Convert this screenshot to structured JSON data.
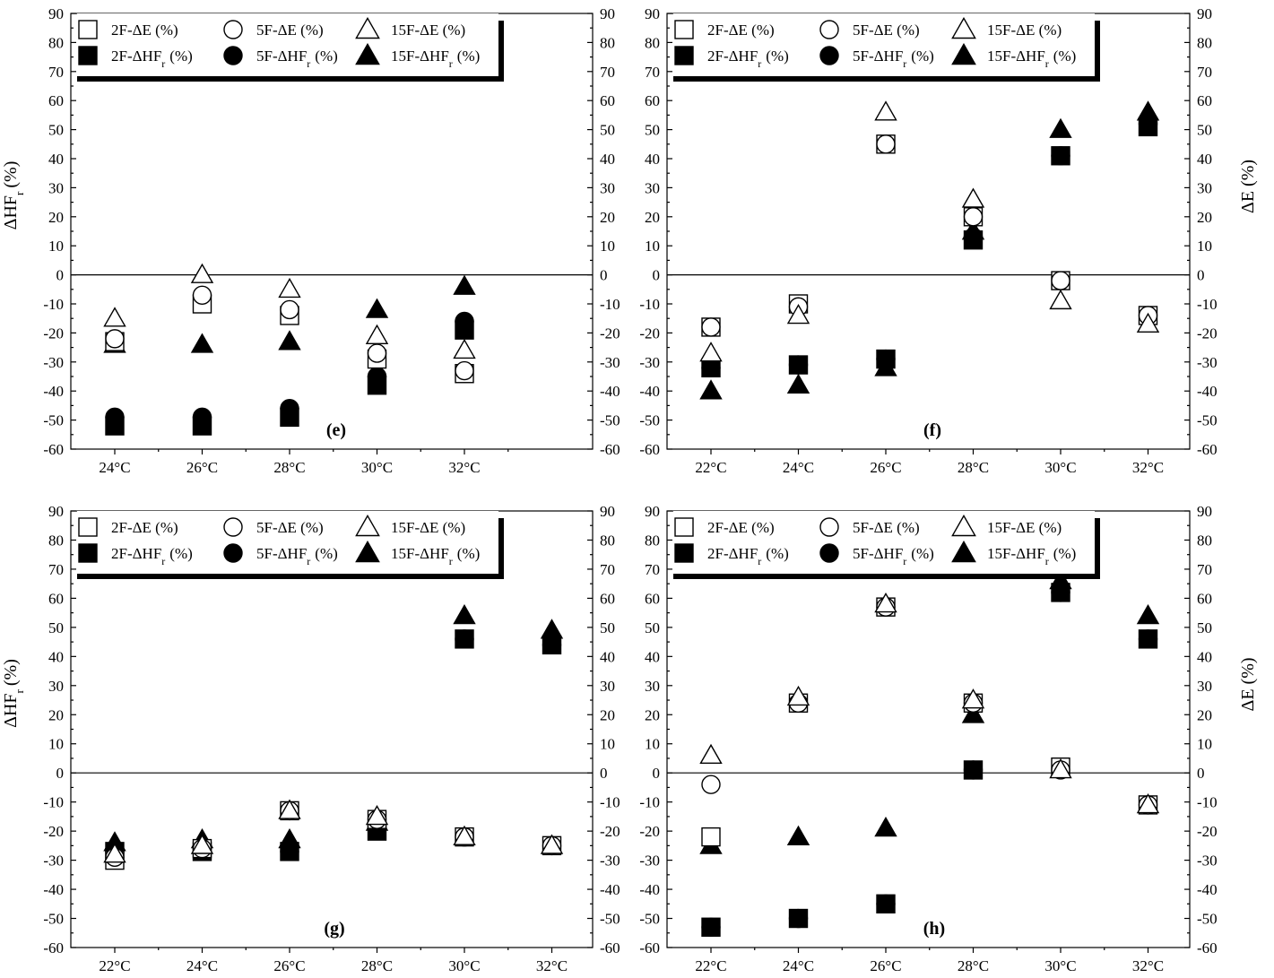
{
  "chart_data": [
    {
      "type": "scatter",
      "panel_label": "(e)",
      "categories": [
        "24°C",
        "26°C",
        "28°C",
        "30°C",
        "32°C"
      ],
      "ylim": [
        -60,
        90
      ],
      "yticks": [
        "90",
        "80",
        "70",
        "60",
        "50",
        "40",
        "30",
        "20",
        "10",
        "0",
        "-10",
        "-20",
        "-30",
        "-40",
        "-50",
        "-60"
      ],
      "ylabel": "ΔHF",
      "ylabel_sub": "r",
      "ylabel_unit": "(%)",
      "y2label": "",
      "legend": [
        {
          "name": "2F-ΔE (%)",
          "marker": "square",
          "filled": false
        },
        {
          "name": "5F-ΔE (%)",
          "marker": "circle",
          "filled": false
        },
        {
          "name": "15F-ΔE (%)",
          "marker": "triangle",
          "filled": false
        },
        {
          "name": "2F-ΔHF",
          "sub": "r",
          "unit": "(%)",
          "marker": "square",
          "filled": true
        },
        {
          "name": "5F-ΔHF",
          "sub": "r",
          "unit": "(%)",
          "marker": "circle",
          "filled": true
        },
        {
          "name": "15F-ΔHF",
          "sub": "r",
          "unit": "(%)",
          "marker": "triangle",
          "filled": true
        }
      ],
      "series": [
        {
          "name": "2F-ΔE (%)",
          "values": [
            -23,
            -10,
            -14,
            -29,
            -34
          ]
        },
        {
          "name": "5F-ΔE (%)",
          "values": [
            -22,
            -7,
            -12,
            -27,
            -33
          ]
        },
        {
          "name": "15F-ΔE (%)",
          "values": [
            -15,
            0,
            -5,
            -21,
            -26
          ]
        },
        {
          "name": "2F-ΔHFr (%)",
          "values": [
            -52,
            -52,
            -49,
            -38,
            -19
          ]
        },
        {
          "name": "5F-ΔHFr (%)",
          "values": [
            -49,
            -49,
            -46,
            -35,
            -16
          ]
        },
        {
          "name": "15F-ΔHFr (%)",
          "values": [
            -24,
            -24,
            -23,
            -12,
            -4
          ]
        }
      ]
    },
    {
      "type": "scatter",
      "panel_label": "(f)",
      "categories": [
        "22°C",
        "24°C",
        "26°C",
        "28°C",
        "30°C",
        "32°C"
      ],
      "ylim": [
        -60,
        90
      ],
      "yticks": [
        "90",
        "80",
        "70",
        "60",
        "50",
        "40",
        "30",
        "20",
        "10",
        "0",
        "-10",
        "-20",
        "-30",
        "-40",
        "-50",
        "-60"
      ],
      "ylabel": "",
      "y2label": "ΔE (%)",
      "legend": [
        {
          "name": "2F-ΔE (%)",
          "marker": "square",
          "filled": false
        },
        {
          "name": "5F-ΔE (%)",
          "marker": "circle",
          "filled": false
        },
        {
          "name": "15F-ΔE (%)",
          "marker": "triangle",
          "filled": false
        },
        {
          "name": "2F-ΔHF",
          "sub": "r",
          "unit": "(%)",
          "marker": "square",
          "filled": true
        },
        {
          "name": "5F-ΔHF",
          "sub": "r",
          "unit": "(%)",
          "marker": "circle",
          "filled": true
        },
        {
          "name": "15F-ΔHF",
          "sub": "r",
          "unit": "(%)",
          "marker": "triangle",
          "filled": true
        }
      ],
      "series": [
        {
          "name": "2F-ΔE (%)",
          "values": [
            -18,
            -10,
            45,
            20,
            -2,
            -14
          ]
        },
        {
          "name": "5F-ΔE (%)",
          "values": [
            -18,
            -11,
            45,
            20,
            -2,
            -14
          ]
        },
        {
          "name": "15F-ΔE (%)",
          "values": [
            -27,
            -14,
            56,
            26,
            -9,
            -17
          ]
        },
        {
          "name": "2F-ΔHFr (%)",
          "values": [
            -32,
            -31,
            -29,
            12,
            41,
            51
          ]
        },
        {
          "name": "5F-ΔHFr (%)",
          "values": [
            -32,
            -31,
            -29,
            13,
            41,
            52
          ]
        },
        {
          "name": "15F-ΔHFr (%)",
          "values": [
            -40,
            -38,
            -32,
            15,
            50,
            56
          ]
        }
      ]
    },
    {
      "type": "scatter",
      "panel_label": "(g)",
      "categories": [
        "22°C",
        "24°C",
        "26°C",
        "28°C",
        "30°C",
        "32°C"
      ],
      "ylim": [
        -60,
        90
      ],
      "yticks": [
        "90",
        "80",
        "70",
        "60",
        "50",
        "40",
        "30",
        "20",
        "10",
        "0",
        "-10",
        "-20",
        "-30",
        "-40",
        "-50",
        "-60"
      ],
      "ylabel": "ΔHF",
      "ylabel_sub": "r",
      "ylabel_unit": "(%)",
      "y2label": "",
      "legend": [
        {
          "name": "2F-ΔE (%)",
          "marker": "square",
          "filled": false
        },
        {
          "name": "5F-ΔE (%)",
          "marker": "circle",
          "filled": false
        },
        {
          "name": "15F-ΔE (%)",
          "marker": "triangle",
          "filled": false
        },
        {
          "name": "2F-ΔHF",
          "sub": "r",
          "unit": "(%)",
          "marker": "square",
          "filled": true
        },
        {
          "name": "5F-ΔHF",
          "sub": "r",
          "unit": "(%)",
          "marker": "circle",
          "filled": true
        },
        {
          "name": "15F-ΔHF",
          "sub": "r",
          "unit": "(%)",
          "marker": "triangle",
          "filled": true
        }
      ],
      "series": [
        {
          "name": "2F-ΔE (%)",
          "values": [
            -30,
            -26,
            -13,
            -16,
            -22,
            -25
          ]
        },
        {
          "name": "5F-ΔE (%)",
          "values": [
            -29,
            -26,
            -13,
            -16,
            -22,
            -25
          ]
        },
        {
          "name": "15F-ΔE (%)",
          "values": [
            -28,
            -25,
            -13,
            -15,
            -22,
            -25
          ]
        },
        {
          "name": "2F-ΔHFr (%)",
          "values": [
            -27,
            -27,
            -27,
            -20,
            46,
            44
          ]
        },
        {
          "name": "5F-ΔHFr (%)",
          "values": [
            -27,
            -27,
            -27,
            -19,
            46,
            44
          ]
        },
        {
          "name": "15F-ΔHFr (%)",
          "values": [
            -24,
            -23,
            -23,
            -17,
            54,
            49
          ]
        }
      ]
    },
    {
      "type": "scatter",
      "panel_label": "(h)",
      "categories": [
        "22°C",
        "24°C",
        "26°C",
        "28°C",
        "30°C",
        "32°C"
      ],
      "ylim": [
        -60,
        90
      ],
      "yticks": [
        "90",
        "80",
        "70",
        "60",
        "50",
        "40",
        "30",
        "20",
        "10",
        "0",
        "-10",
        "-20",
        "-30",
        "-40",
        "-50",
        "-60"
      ],
      "ylabel": "",
      "y2label": "ΔE (%)",
      "legend": [
        {
          "name": "2F-ΔE (%)",
          "marker": "square",
          "filled": false
        },
        {
          "name": "5F-ΔE (%)",
          "marker": "circle",
          "filled": false
        },
        {
          "name": "15F-ΔE (%)",
          "marker": "triangle",
          "filled": false
        },
        {
          "name": "2F-ΔHF",
          "sub": "r",
          "unit": "(%)",
          "marker": "square",
          "filled": true
        },
        {
          "name": "5F-ΔHF",
          "sub": "r",
          "unit": "(%)",
          "marker": "circle",
          "filled": true
        },
        {
          "name": "15F-ΔHF",
          "sub": "r",
          "unit": "(%)",
          "marker": "triangle",
          "filled": true
        }
      ],
      "series": [
        {
          "name": "2F-ΔE (%)",
          "values": [
            -22,
            24,
            57,
            24,
            2,
            -11
          ]
        },
        {
          "name": "5F-ΔE (%)",
          "values": [
            -4,
            24,
            57,
            24,
            1,
            -11
          ]
        },
        {
          "name": "15F-ΔE (%)",
          "values": [
            6,
            26,
            58,
            25,
            1,
            -11
          ]
        },
        {
          "name": "2F-ΔHFr (%)",
          "values": [
            -53,
            -50,
            -45,
            1,
            62,
            46
          ]
        },
        {
          "name": "5F-ΔHFr (%)",
          "values": [
            -53,
            -50,
            -45,
            1,
            62,
            46
          ]
        },
        {
          "name": "15F-ΔHFr (%)",
          "values": [
            -25,
            -22,
            -19,
            20,
            66,
            54
          ]
        }
      ]
    }
  ]
}
